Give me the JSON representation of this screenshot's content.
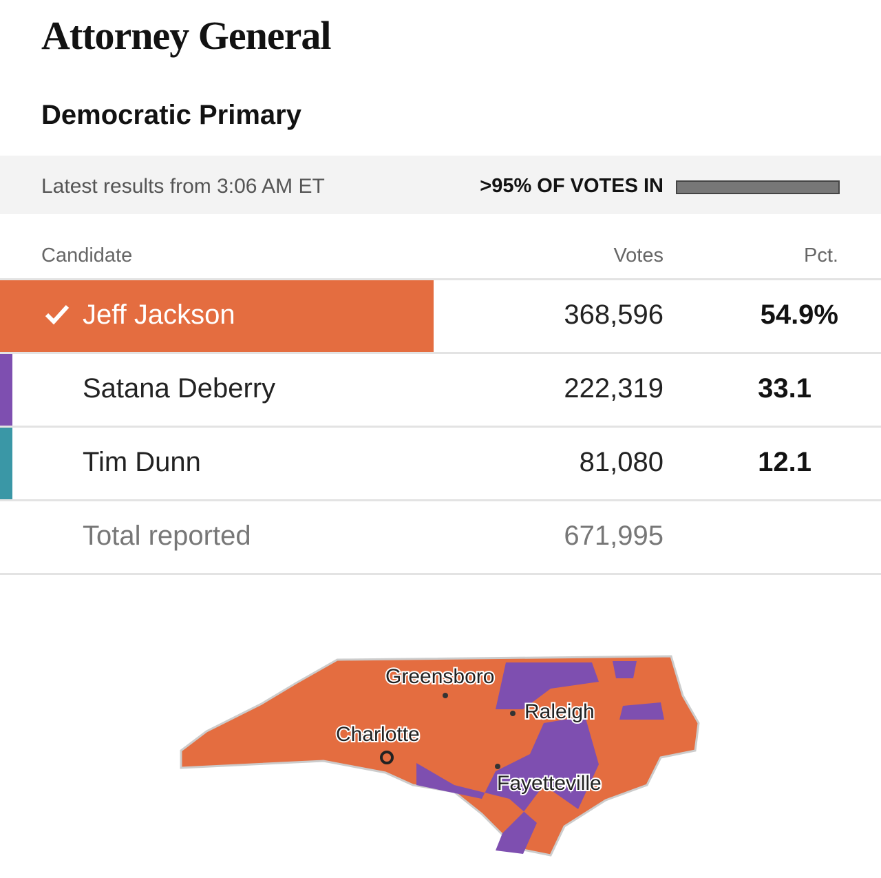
{
  "header": {
    "title": "Attorney General",
    "subtitle": "Democratic Primary"
  },
  "status": {
    "updated": "Latest results from 3:06 AM ET",
    "reporting": ">95% OF VOTES IN"
  },
  "table": {
    "columns": [
      "Candidate",
      "Votes",
      "Pct."
    ],
    "rows": [
      {
        "name": "Jeff Jackson",
        "votes": "368,596",
        "pct": "54.9%",
        "color": "#e46d40",
        "winner": true
      },
      {
        "name": "Satana Deberry",
        "votes": "222,319",
        "pct": "33.1",
        "color": "#7e4fb0",
        "winner": false
      },
      {
        "name": "Tim Dunn",
        "votes": "81,080",
        "pct": "12.1",
        "color": "#3a97a6",
        "winner": false
      }
    ],
    "total": {
      "label": "Total reported",
      "votes": "671,995"
    }
  },
  "map": {
    "cities": [
      "Greensboro",
      "Charlotte",
      "Raleigh",
      "Fayetteville"
    ]
  }
}
